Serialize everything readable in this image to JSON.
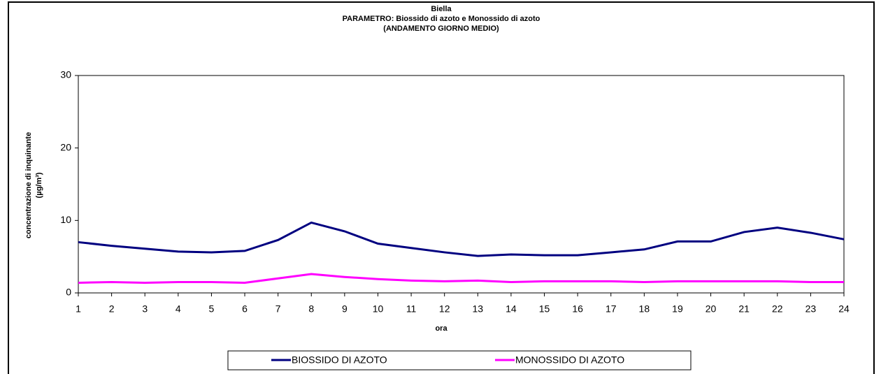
{
  "chart_data": {
    "type": "line",
    "title": [
      "Biella",
      "PARAMETRO: Biossido di azoto e Monossido di azoto",
      "(ANDAMENTO GIORNO MEDIO)"
    ],
    "x_label": "ora",
    "y_label": [
      "concentrazione di inquinante",
      "(µg/m³)"
    ],
    "x": [
      1,
      2,
      3,
      4,
      5,
      6,
      7,
      8,
      9,
      10,
      11,
      12,
      13,
      14,
      15,
      16,
      17,
      18,
      19,
      20,
      21,
      22,
      23,
      24
    ],
    "xlim": [
      1,
      24
    ],
    "xticks": [
      1,
      2,
      3,
      4,
      5,
      6,
      7,
      8,
      9,
      10,
      11,
      12,
      13,
      14,
      15,
      16,
      17,
      18,
      19,
      20,
      21,
      22,
      23,
      24
    ],
    "ylim": [
      0,
      30
    ],
    "yticks": [
      0,
      10,
      20,
      30
    ],
    "legend": "bottom",
    "series": [
      {
        "name": "BIOSSIDO DI AZOTO",
        "color": "#000080",
        "values": [
          7.0,
          6.5,
          6.1,
          5.7,
          5.6,
          5.8,
          7.3,
          9.7,
          8.5,
          6.8,
          6.2,
          5.6,
          5.1,
          5.3,
          5.2,
          5.2,
          5.6,
          6.0,
          7.1,
          7.1,
          8.4,
          9.0,
          8.3,
          7.4
        ]
      },
      {
        "name": "MONOSSIDO DI AZOTO",
        "color": "#ff00ff",
        "values": [
          1.4,
          1.5,
          1.4,
          1.5,
          1.5,
          1.4,
          2.0,
          2.6,
          2.2,
          1.9,
          1.7,
          1.6,
          1.7,
          1.5,
          1.6,
          1.6,
          1.6,
          1.5,
          1.6,
          1.6,
          1.6,
          1.6,
          1.5,
          1.5
        ]
      }
    ]
  }
}
